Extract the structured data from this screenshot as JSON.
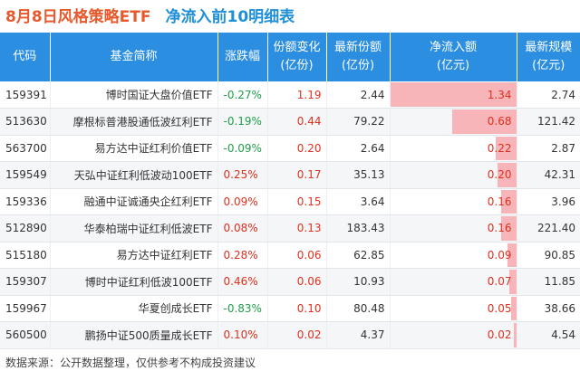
{
  "title": {
    "part1": "8月8日风格策略ETF",
    "part2": "净流入前10明细表"
  },
  "headers": {
    "code": "代码",
    "name": "基金简称",
    "change": "涨跌幅",
    "share_change": "份额变化\n(亿份)",
    "latest_share": "最新份额\n(亿份)",
    "net_inflow": "净流入额\n(亿元)",
    "scale": "最新规模\n(亿元)"
  },
  "colors": {
    "header_bg": "#2b8ee0",
    "bar": "#f7b5b9",
    "up": "#e0301e",
    "down": "#1f9e4a"
  },
  "chart_data": {
    "type": "table",
    "bar_column": "net_inflow",
    "bar_max": 1.34,
    "rows": [
      {
        "code": "159391",
        "name": "博时国证大盘价值ETF",
        "change": "-0.27%",
        "share_change": "1.19",
        "latest_share": "2.44",
        "net_inflow": "1.34",
        "scale": "2.74"
      },
      {
        "code": "513630",
        "name": "摩根标普港股通低波红利ETF",
        "change": "-0.19%",
        "share_change": "0.44",
        "latest_share": "79.22",
        "net_inflow": "0.68",
        "scale": "121.42"
      },
      {
        "code": "563700",
        "name": "易方达中证红利价值ETF",
        "change": "-0.09%",
        "share_change": "0.20",
        "latest_share": "2.64",
        "net_inflow": "0.22",
        "scale": "2.87"
      },
      {
        "code": "159549",
        "name": "天弘中证红利低波动100ETF",
        "change": "0.25%",
        "share_change": "0.17",
        "latest_share": "35.13",
        "net_inflow": "0.20",
        "scale": "42.31"
      },
      {
        "code": "159336",
        "name": "融通中证诚通央企红利ETF",
        "change": "0.09%",
        "share_change": "0.15",
        "latest_share": "3.64",
        "net_inflow": "0.16",
        "scale": "3.96"
      },
      {
        "code": "512890",
        "name": "华泰柏瑞中证红利低波ETF",
        "change": "0.08%",
        "share_change": "0.13",
        "latest_share": "183.43",
        "net_inflow": "0.16",
        "scale": "221.40"
      },
      {
        "code": "515180",
        "name": "易方达中证红利ETF",
        "change": "0.28%",
        "share_change": "0.06",
        "latest_share": "62.85",
        "net_inflow": "0.09",
        "scale": "90.85"
      },
      {
        "code": "159307",
        "name": "博时中证红利低波100ETF",
        "change": "0.46%",
        "share_change": "0.06",
        "latest_share": "10.93",
        "net_inflow": "0.07",
        "scale": "11.85"
      },
      {
        "code": "159967",
        "name": "华夏创成长ETF",
        "change": "-0.83%",
        "share_change": "0.10",
        "latest_share": "80.48",
        "net_inflow": "0.05",
        "scale": "38.66"
      },
      {
        "code": "560500",
        "name": "鹏扬中证500质量成长ETF",
        "change": "0.10%",
        "share_change": "0.02",
        "latest_share": "4.37",
        "net_inflow": "0.02",
        "scale": "4.54"
      }
    ]
  },
  "footer": "数据来源：公开数据整理，仅供参考不构成投资建议"
}
